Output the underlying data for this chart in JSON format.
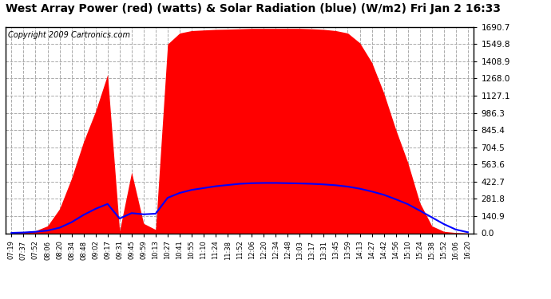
{
  "title": "West Array Power (red) (watts) & Solar Radiation (blue) (W/m2) Fri Jan 2 16:33",
  "copyright": "Copyright 2009 Cartronics.com",
  "background_color": "#ffffff",
  "plot_bg_color": "#ffffff",
  "grid_color": "#aaaaaa",
  "y_max": 1690.7,
  "y_min": 0.0,
  "yticks": [
    0.0,
    140.9,
    281.8,
    422.7,
    563.6,
    704.5,
    845.4,
    986.3,
    1127.1,
    1268.0,
    1408.9,
    1549.8,
    1690.7
  ],
  "x_labels": [
    "07:19",
    "07:37",
    "07:52",
    "08:06",
    "08:20",
    "08:34",
    "08:48",
    "09:02",
    "09:17",
    "09:31",
    "09:45",
    "09:59",
    "10:13",
    "10:27",
    "10:41",
    "10:55",
    "11:10",
    "11:24",
    "11:38",
    "11:52",
    "12:06",
    "12:20",
    "12:34",
    "12:48",
    "13:03",
    "13:17",
    "13:31",
    "13:45",
    "13:59",
    "14:13",
    "14:27",
    "14:42",
    "14:56",
    "15:10",
    "15:24",
    "15:38",
    "15:52",
    "16:06",
    "16:20"
  ],
  "power_color": "#ff0000",
  "radiation_color": "#0000ff",
  "title_fontsize": 10,
  "copyright_fontsize": 7,
  "power_data": [
    5,
    10,
    20,
    60,
    200,
    450,
    750,
    1000,
    1300,
    20,
    500,
    80,
    30,
    1550,
    1640,
    1660,
    1665,
    1670,
    1672,
    1675,
    1678,
    1678,
    1678,
    1678,
    1678,
    1675,
    1670,
    1660,
    1640,
    1560,
    1400,
    1150,
    850,
    580,
    250,
    60,
    15,
    5,
    2
  ],
  "radiation_data": [
    3,
    6,
    12,
    22,
    45,
    90,
    150,
    200,
    240,
    120,
    165,
    155,
    160,
    290,
    330,
    355,
    370,
    385,
    395,
    405,
    410,
    412,
    412,
    410,
    408,
    405,
    400,
    393,
    382,
    365,
    342,
    315,
    278,
    238,
    185,
    130,
    75,
    30,
    8
  ]
}
